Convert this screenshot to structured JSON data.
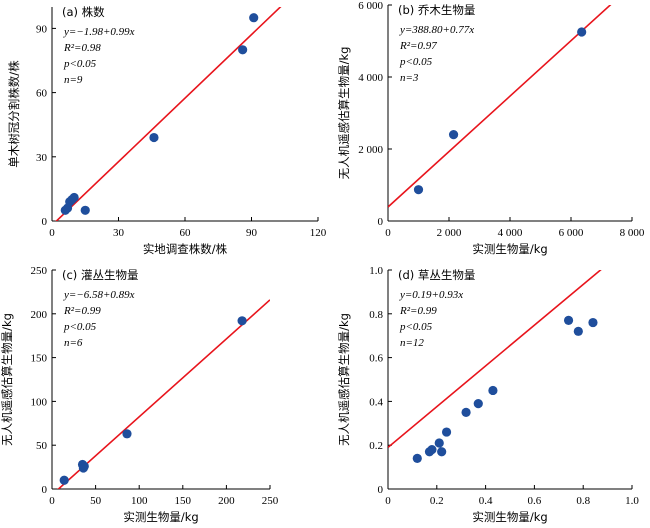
{
  "chart_data": [
    {
      "type": "scatter",
      "title": "(a) 株数",
      "xlabel": "实地调查株数/株",
      "ylabel": "单木树冠分割株数/株",
      "xlim": [
        0,
        120
      ],
      "ylim": [
        0,
        100
      ],
      "xticks": [
        0,
        30,
        60,
        90,
        120
      ],
      "yticks": [
        0,
        30,
        60,
        90
      ],
      "xtick_labels": [
        "0",
        "30",
        "60",
        "90",
        "120"
      ],
      "ytick_labels": [
        "0",
        "30",
        "60",
        "90"
      ],
      "annotations": [
        "y=−1.98+0.99x",
        "R²=0.98",
        "p<0.05",
        "n=9"
      ],
      "fit": {
        "intercept": -1.98,
        "slope": 0.99
      },
      "x": [
        6,
        7,
        8,
        9,
        10,
        15,
        46,
        86,
        91
      ],
      "y": [
        5,
        6,
        9,
        10,
        11,
        5,
        39,
        80,
        95
      ]
    },
    {
      "type": "scatter",
      "title": "(b) 乔木生物量",
      "xlabel": "实测生物量/kg",
      "ylabel": "无人机遥感估算生物量/kg",
      "xlim": [
        0,
        8000
      ],
      "ylim": [
        0,
        6000
      ],
      "xticks": [
        0,
        2000,
        4000,
        6000,
        8000
      ],
      "yticks": [
        0,
        2000,
        4000,
        6000
      ],
      "xtick_labels": [
        "0",
        "2 000",
        "4 000",
        "6 000",
        "8 000"
      ],
      "ytick_labels": [
        "0",
        "2 000",
        "4 000",
        "6 000"
      ],
      "annotations": [
        "y=388.80+0.77x",
        "R²=0.97",
        "p<0.05",
        "n=3"
      ],
      "fit": {
        "intercept": 388.8,
        "slope": 0.77
      },
      "x": [
        1000,
        2150,
        6350
      ],
      "y": [
        870,
        2400,
        5250
      ]
    },
    {
      "type": "scatter",
      "title": "(c) 灌丛生物量",
      "xlabel": "实测生物量/kg",
      "ylabel": "无人机遥感估算生物量/kg",
      "xlim": [
        0,
        250
      ],
      "ylim": [
        0,
        250
      ],
      "xticks": [
        0,
        50,
        100,
        150,
        200,
        250
      ],
      "yticks": [
        0,
        50,
        100,
        150,
        200,
        250
      ],
      "xtick_labels": [
        "0",
        "50",
        "100",
        "150",
        "200",
        "250"
      ],
      "ytick_labels": [
        "0",
        "50",
        "100",
        "150",
        "200",
        "250"
      ],
      "annotations": [
        "y=−6.58+0.89x",
        "R²=0.99",
        "p<0.05",
        "n=6"
      ],
      "fit": {
        "intercept": -6.58,
        "slope": 0.89
      },
      "x": [
        14,
        35,
        36,
        37,
        86,
        218
      ],
      "y": [
        10,
        28,
        24,
        26,
        63,
        192
      ]
    },
    {
      "type": "scatter",
      "title": "(d) 草丛生物量",
      "xlabel": "实测生物量/kg",
      "ylabel": "无人机遥感估算生物量/kg",
      "xlim": [
        0,
        1.0
      ],
      "ylim": [
        0,
        1.0
      ],
      "xticks": [
        0,
        0.2,
        0.4,
        0.6,
        0.8,
        1.0
      ],
      "yticks": [
        0,
        0.2,
        0.4,
        0.6,
        0.8,
        1.0
      ],
      "xtick_labels": [
        "0",
        "0.2",
        "0.4",
        "0.6",
        "0.8",
        "1.0"
      ],
      "ytick_labels": [
        "0",
        "0.2",
        "0.4",
        "0.6",
        "0.8",
        "1.0"
      ],
      "annotations": [
        "y=0.19+0.93x",
        "R²=0.99",
        "p<0.05",
        "n=12"
      ],
      "fit": {
        "intercept": 0.19,
        "slope": 0.93
      },
      "x": [
        0.12,
        0.17,
        0.18,
        0.21,
        0.22,
        0.24,
        0.32,
        0.37,
        0.43,
        0.74,
        0.78,
        0.84
      ],
      "y": [
        0.14,
        0.17,
        0.18,
        0.21,
        0.17,
        0.26,
        0.35,
        0.39,
        0.45,
        0.77,
        0.72,
        0.76
      ]
    }
  ],
  "colors": {
    "points": "#1f4e9c",
    "fit_line": "#e8141c",
    "axis": "#000000"
  }
}
